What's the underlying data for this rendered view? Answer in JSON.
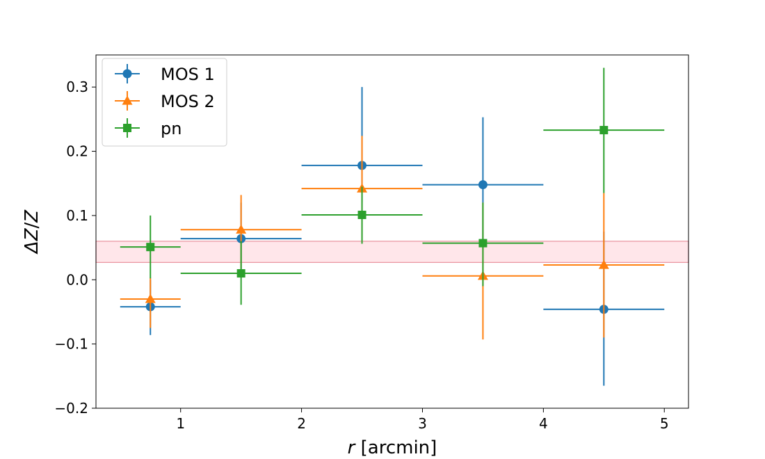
{
  "chart_data": {
    "type": "scatter",
    "title": "",
    "xlabel_var": "r",
    "xlabel_unit": " [arcmin]",
    "ylabel_main": "ΔZ",
    "ylabel_sep": "/",
    "ylabel_den": "Z",
    "xlim": [
      0.3,
      5.2
    ],
    "ylim": [
      -0.2,
      0.35
    ],
    "xticks": [
      1,
      2,
      3,
      4,
      5
    ],
    "xtick_labels": [
      "1",
      "2",
      "3",
      "4",
      "5"
    ],
    "yticks": [
      -0.2,
      -0.1,
      0.0,
      0.1,
      0.2,
      0.3
    ],
    "ytick_labels": [
      "−0.2",
      "−0.1",
      "0.0",
      "0.1",
      "0.2",
      "0.3"
    ],
    "grid": false,
    "legend_position": "upper-left",
    "band": {
      "y0": 0.027,
      "y1": 0.06,
      "color": "#ffc0cb"
    },
    "series": [
      {
        "name": "MOS 1",
        "marker": "circle",
        "color": "#1f77b4",
        "x": [
          0.75,
          1.5,
          2.5,
          3.5,
          4.5
        ],
        "x_lo": [
          0.5,
          1.0,
          2.0,
          3.0,
          4.0
        ],
        "x_hi": [
          1.0,
          2.0,
          3.0,
          4.0,
          5.0
        ],
        "y": [
          -0.042,
          0.064,
          0.178,
          0.148,
          -0.046
        ],
        "y_lo": [
          -0.086,
          0.012,
          0.12,
          0.06,
          -0.165
        ],
        "y_hi": [
          0.0,
          0.12,
          0.3,
          0.253,
          0.075
        ]
      },
      {
        "name": "MOS 2",
        "marker": "triangle",
        "color": "#ff7f0e",
        "x": [
          0.75,
          1.5,
          2.5,
          3.5,
          4.5
        ],
        "x_lo": [
          0.5,
          1.0,
          2.0,
          3.0,
          4.0
        ],
        "x_hi": [
          1.0,
          2.0,
          3.0,
          4.0,
          5.0
        ],
        "y": [
          -0.03,
          0.078,
          0.142,
          0.006,
          0.023
        ],
        "y_lo": [
          -0.075,
          0.018,
          0.06,
          -0.093,
          -0.09
        ],
        "y_hi": [
          0.003,
          0.132,
          0.224,
          0.12,
          0.135
        ]
      },
      {
        "name": "pn",
        "marker": "square",
        "color": "#2ca02c",
        "x": [
          0.75,
          1.5,
          2.5,
          3.5,
          4.5
        ],
        "x_lo": [
          0.5,
          1.0,
          2.0,
          3.0,
          4.0
        ],
        "x_hi": [
          1.0,
          2.0,
          3.0,
          4.0,
          5.0
        ],
        "y": [
          0.051,
          0.01,
          0.101,
          0.057,
          0.233
        ],
        "y_lo": [
          0.002,
          -0.039,
          0.056,
          -0.01,
          0.135
        ],
        "y_hi": [
          0.1,
          0.06,
          0.145,
          0.12,
          0.33
        ]
      }
    ]
  }
}
